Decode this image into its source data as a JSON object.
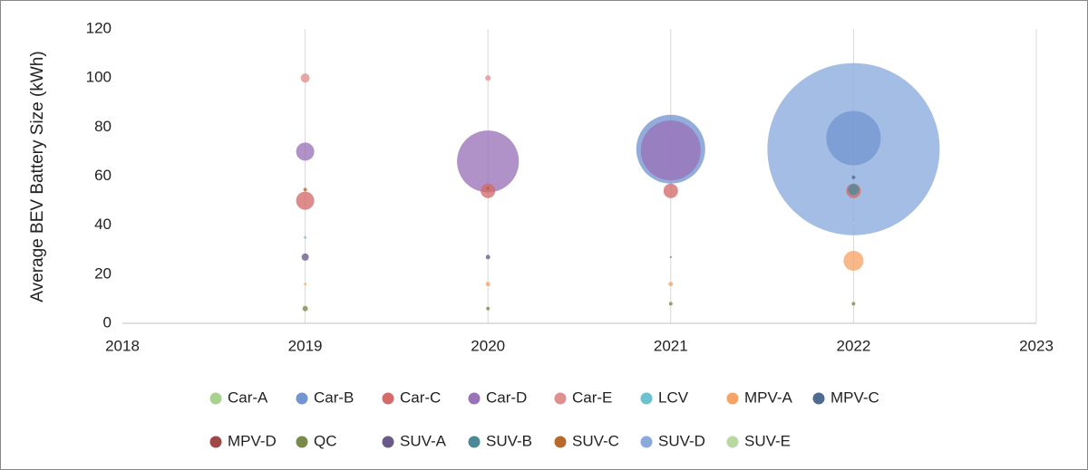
{
  "chart_data": {
    "type": "bubble",
    "y_label": "Average BEV Battery Size (kWh)",
    "xlim": [
      2018,
      2023
    ],
    "xticks": [
      2018,
      2019,
      2020,
      2021,
      2022,
      2023
    ],
    "ylim": [
      0,
      120
    ],
    "yticks": [
      0,
      20,
      40,
      60,
      80,
      100,
      120
    ],
    "grid": "x",
    "legend": "bottom",
    "series": [
      {
        "name": "Car-A",
        "color": "#a9d18e",
        "x": [],
        "values": [],
        "sizes": []
      },
      {
        "name": "Car-B",
        "color": "#7396d2",
        "x": [
          2021,
          2022
        ],
        "values": [
          71,
          75.5
        ],
        "sizes": [
          144,
          90
        ]
      },
      {
        "name": "Car-C",
        "color": "#d46a6a",
        "x": [
          2019,
          2020,
          2021,
          2022
        ],
        "values": [
          50,
          54,
          54,
          54
        ],
        "sizes": [
          10,
          6.4,
          6.4,
          6.4
        ]
      },
      {
        "name": "Car-D",
        "color": "#9a72b8",
        "x": [
          2019,
          2020,
          2021
        ],
        "values": [
          70,
          66,
          70.5
        ],
        "sizes": [
          10,
          116,
          109
        ]
      },
      {
        "name": "Car-E",
        "color": "#e0918f",
        "x": [
          2019,
          2020
        ],
        "values": [
          100,
          100
        ],
        "sizes": [
          2.5,
          0.9
        ]
      },
      {
        "name": "LCV",
        "color": "#6cc0d0",
        "x": [
          2019
        ],
        "values": [
          35
        ],
        "sizes": [
          0.2
        ]
      },
      {
        "name": "MPV-A",
        "color": "#f6a465",
        "x": [
          2019,
          2020,
          2021,
          2022
        ],
        "values": [
          16,
          16,
          16,
          25.5
        ],
        "sizes": [
          0.2,
          0.6,
          0.6,
          12
        ]
      },
      {
        "name": "MPV-C",
        "color": "#4f6b8f",
        "x": [
          2022
        ],
        "values": [
          59.5
        ],
        "sizes": [
          0.4
        ]
      },
      {
        "name": "MPV-D",
        "color": "#a04848",
        "x": [],
        "values": [],
        "sizes": []
      },
      {
        "name": "QC",
        "color": "#7a8a4a",
        "x": [
          2019,
          2020,
          2021,
          2022
        ],
        "values": [
          6,
          6,
          8,
          8
        ],
        "sizes": [
          0.9,
          0.4,
          0.4,
          0.4
        ]
      },
      {
        "name": "SUV-A",
        "color": "#6a5a8a",
        "x": [
          2019,
          2020,
          2021
        ],
        "values": [
          27,
          27,
          27
        ],
        "sizes": [
          1.6,
          0.6,
          0.1
        ]
      },
      {
        "name": "SUV-B",
        "color": "#4a8a98",
        "x": [
          2022
        ],
        "values": [
          54.5
        ],
        "sizes": [
          3.6
        ]
      },
      {
        "name": "SUV-C",
        "color": "#b8692a",
        "x": [
          2019,
          2020
        ],
        "values": [
          54.5,
          55
        ],
        "sizes": [
          0.4,
          0.4
        ]
      },
      {
        "name": "SUV-D",
        "color": "#8aaadc",
        "x": [
          2022
        ],
        "values": [
          71
        ],
        "sizes": [
          900
        ]
      },
      {
        "name": "SUV-E",
        "color": "#b9d7a0",
        "x": [
          2022
        ],
        "values": [
          41
        ],
        "sizes": [
          0.1
        ]
      }
    ]
  }
}
